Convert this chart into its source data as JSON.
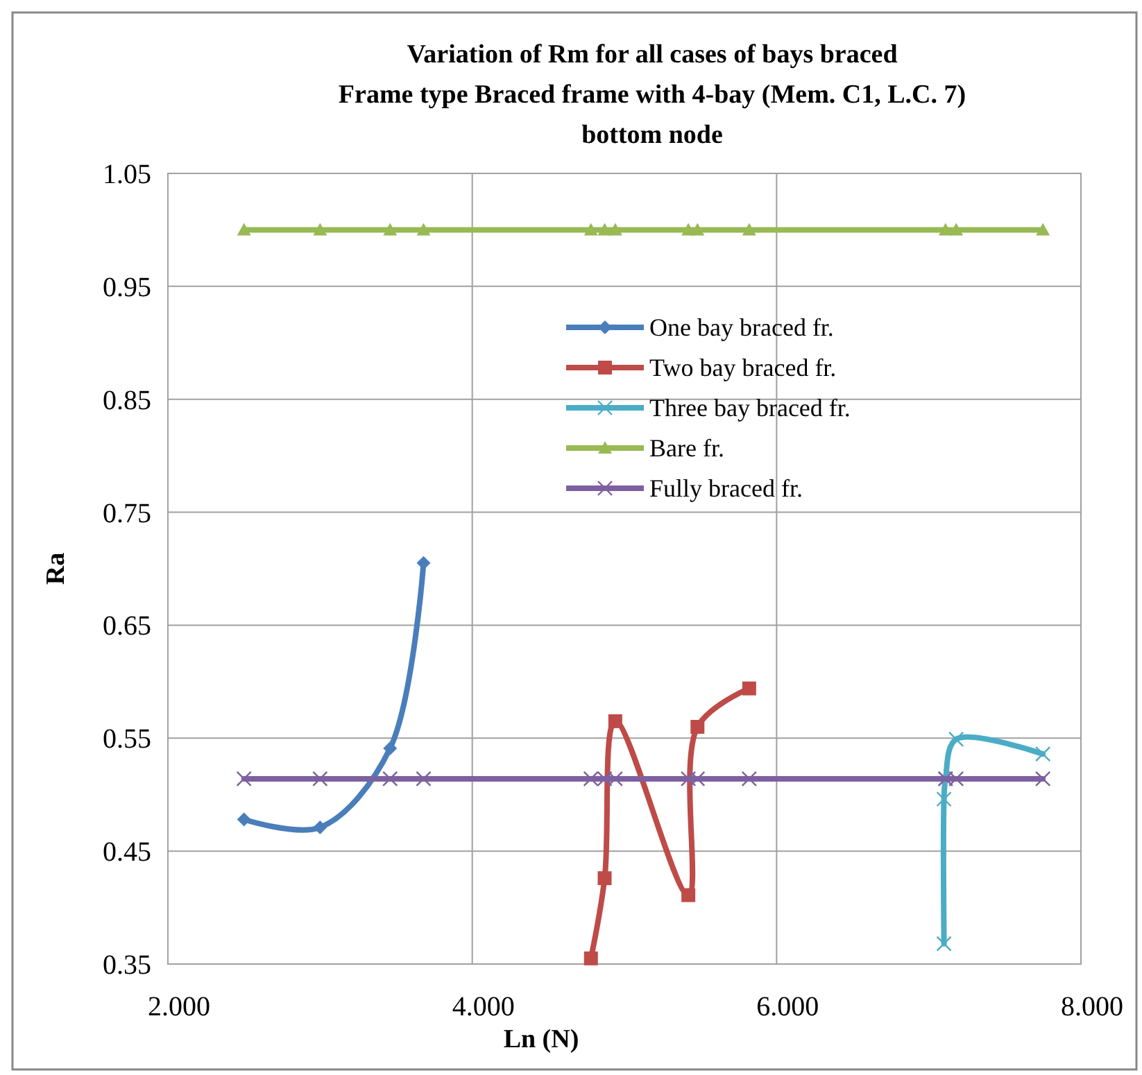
{
  "chart_data": {
    "type": "line",
    "title": "Variation of Rm for all cases of bays braced\nFrame type Braced frame with 4-bay (Mem. C1, L.C. 7)\nbottom node",
    "xlabel": "Ln (N)",
    "ylabel": "Ra",
    "xlim": [
      2,
      8
    ],
    "xticks": [
      {
        "value": 2,
        "label": "2.000"
      },
      {
        "value": 4,
        "label": "4.000"
      },
      {
        "value": 6,
        "label": "6.000"
      },
      {
        "value": 8,
        "label": "8.000"
      }
    ],
    "ylim": [
      0.35,
      1.05
    ],
    "yticks": [
      {
        "value": 0.35,
        "label": "0.35"
      },
      {
        "value": 0.45,
        "label": "0.45"
      },
      {
        "value": 0.55,
        "label": "0.55"
      },
      {
        "value": 0.65,
        "label": "0.65"
      },
      {
        "value": 0.75,
        "label": "0.75"
      },
      {
        "value": 0.85,
        "label": "0.85"
      },
      {
        "value": 0.95,
        "label": "0.95"
      },
      {
        "value": 1.05,
        "label": "1.05"
      }
    ],
    "grid": true,
    "legend": "top right",
    "series": [
      {
        "name": "One bay braced fr.",
        "color": "#4a7ebb",
        "marker": "diamond",
        "x": [
          2.5,
          3.0,
          3.46,
          3.68
        ],
        "values": [
          0.478,
          0.471,
          0.541,
          0.705
        ]
      },
      {
        "name": "Two bay braced fr.",
        "color": "#be4b48",
        "marker": "square",
        "x": [
          4.78,
          4.87,
          4.94,
          5.42,
          5.48,
          5.82
        ],
        "values": [
          0.355,
          0.426,
          0.565,
          0.411,
          0.56,
          0.594
        ]
      },
      {
        "name": "Three bay braced fr.",
        "color": "#4bacc6",
        "marker": "cross",
        "x": [
          7.1,
          7.1,
          7.11,
          7.18,
          7.75
        ],
        "values": [
          0.368,
          0.496,
          0.514,
          0.549,
          0.536
        ]
      },
      {
        "name": "Bare fr.",
        "color": "#98b954",
        "marker": "triangle",
        "x": [
          2.5,
          3.0,
          3.46,
          3.68,
          4.78,
          4.87,
          4.94,
          5.42,
          5.48,
          5.82,
          7.11,
          7.18,
          7.75
        ],
        "values": [
          1,
          1,
          1,
          1,
          1,
          1,
          1,
          1,
          1,
          1,
          1,
          1,
          1
        ]
      },
      {
        "name": "Fully braced fr.",
        "color": "#7d60a0",
        "marker": "cross",
        "x": [
          2.5,
          3.0,
          3.46,
          3.68,
          4.78,
          4.87,
          4.94,
          5.42,
          5.48,
          5.82,
          7.11,
          7.18,
          7.75
        ],
        "values": [
          0.514,
          0.514,
          0.514,
          0.514,
          0.514,
          0.514,
          0.514,
          0.514,
          0.514,
          0.514,
          0.514,
          0.514,
          0.514
        ]
      }
    ]
  }
}
